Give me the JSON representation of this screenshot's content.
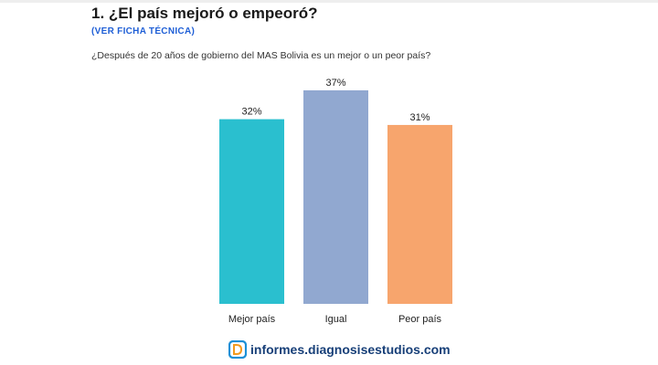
{
  "header": {
    "title": "1. ¿El país mejoró o empeoró?",
    "tech_sheet_link": "(VER FICHA TÉCNICA)",
    "question": "¿Después de 20 años de gobierno del MAS Bolivia es un mejor o un peor país?"
  },
  "chart_data": {
    "type": "bar",
    "title": "1. ¿El país mejoró o empeoró?",
    "subtitle": "¿Después de 20 años de gobierno del MAS Bolivia es un mejor o un peor país?",
    "categories": [
      "Mejor país",
      "Igual",
      "Peor país"
    ],
    "values": [
      32,
      37,
      31
    ],
    "value_labels": [
      "32%",
      "37%",
      "31%"
    ],
    "colors": [
      "#2abfcf",
      "#91a8d0",
      "#f7a56d"
    ],
    "xlabel": "",
    "ylabel": "",
    "ylim": [
      0,
      37
    ],
    "grid": false,
    "legend": "none"
  },
  "footer": {
    "site": "informes.diagnosisestudios.com",
    "logo_icon": "diagnosis-logo-icon",
    "logo_colors": [
      "#1a8fd6",
      "#f39a1e"
    ]
  }
}
